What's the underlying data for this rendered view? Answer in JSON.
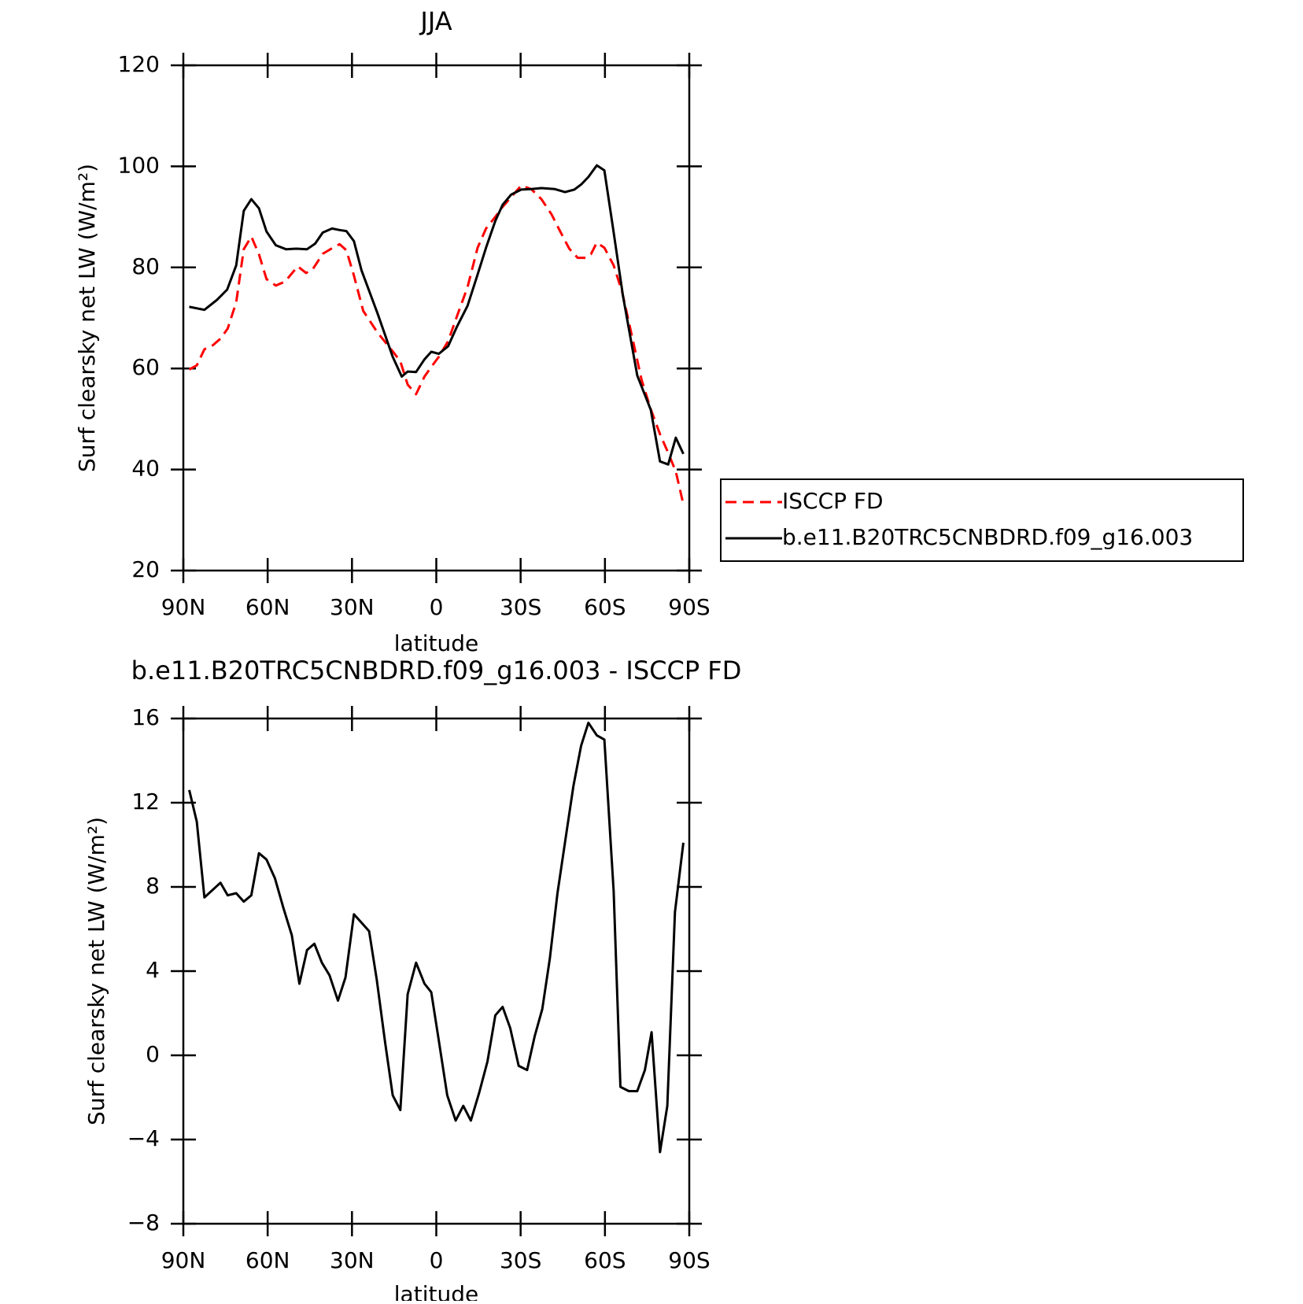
{
  "chart_data": [
    {
      "type": "line",
      "title": "JJA",
      "xlabel": "latitude",
      "ylabel": "Surf clearsky net LW (W/m²)",
      "xlim": [
        90,
        -90
      ],
      "xticks": [
        {
          "value": 90,
          "label": "90N"
        },
        {
          "value": 60,
          "label": "60N"
        },
        {
          "value": 30,
          "label": "30N"
        },
        0,
        {
          "value": -30,
          "label": "30S"
        },
        {
          "value": -60,
          "label": "60S"
        },
        {
          "value": -90,
          "label": "90S"
        }
      ],
      "ylim": [
        20,
        120
      ],
      "yticks": [
        20,
        40,
        60,
        80,
        100,
        120
      ],
      "legend": "outside right",
      "series": [
        {
          "name": "ISCCP FD",
          "color": "#ff0000",
          "style": "dashed",
          "x": [
            87.9,
            85.2,
            82.5,
            79.5,
            76.8,
            74.2,
            71.2,
            68.5,
            65.8,
            63.1,
            60.4,
            57.1,
            53.8,
            49.3,
            46.3,
            43.9,
            40.4,
            36.8,
            34.4,
            32.0,
            29.3,
            26.0,
            20.9,
            15.5,
            12.8,
            10.2,
            7.2,
            4.2,
            1.8,
            -0.9,
            -4.2,
            -7.2,
            -11.1,
            -14.7,
            -17.7,
            -21.0,
            -23.6,
            -26.6,
            -30.2,
            -33.8,
            -37.4,
            -41.0,
            -44.0,
            -47.3,
            -50.3,
            -53.2,
            -55.0,
            -57.1,
            -59.8,
            -63.1,
            -66.1,
            -70.0,
            -73.0,
            -76.3,
            -79.6,
            -82.5,
            -85.2,
            -87.9
          ],
          "values": [
            59.8,
            60.6,
            63.8,
            64.6,
            65.9,
            67.9,
            73.1,
            83.6,
            86.1,
            82.6,
            77.7,
            76.4,
            77.2,
            80.2,
            78.9,
            79.7,
            82.7,
            83.9,
            84.6,
            83.4,
            78.4,
            71.4,
            67.1,
            63.4,
            61.4,
            56.8,
            54.9,
            58.4,
            60.3,
            62.3,
            65.4,
            70.1,
            76.1,
            83.9,
            87.7,
            90.0,
            92.0,
            93.9,
            96.2,
            95.5,
            93.5,
            90.5,
            87.2,
            83.7,
            81.9,
            81.9,
            82.6,
            84.9,
            83.9,
            80.4,
            75.2,
            65.4,
            57.8,
            51.9,
            47.0,
            43.3,
            39.6,
            33.1
          ]
        },
        {
          "name": "b.e11.B20TRC5CNBDRD.f09_g16.003",
          "color": "#000000",
          "style": "solid",
          "x": [
            87.9,
            82.5,
            78.0,
            74.4,
            71.2,
            68.5,
            65.8,
            63.1,
            60.4,
            57.1,
            53.5,
            49.9,
            46.0,
            43.1,
            40.4,
            37.1,
            34.4,
            32.0,
            29.3,
            26.6,
            20.9,
            15.5,
            12.3,
            10.2,
            7.2,
            4.2,
            1.8,
            -0.9,
            -4.2,
            -7.2,
            -11.1,
            -14.7,
            -17.7,
            -21.0,
            -23.6,
            -26.6,
            -30.2,
            -33.8,
            -37.4,
            -42.2,
            -45.8,
            -49.1,
            -51.7,
            -54.1,
            -57.1,
            -59.8,
            -62.8,
            -66.4,
            -71.5,
            -76.3,
            -79.6,
            -82.5,
            -85.2,
            -87.9
          ],
          "values": [
            72.2,
            71.6,
            73.6,
            75.6,
            80.4,
            91.2,
            93.5,
            91.7,
            87.1,
            84.4,
            83.6,
            83.7,
            83.6,
            84.7,
            86.9,
            87.7,
            87.4,
            87.2,
            85.2,
            79.4,
            70.9,
            62.3,
            58.4,
            59.4,
            59.3,
            61.8,
            63.3,
            62.9,
            64.4,
            68.1,
            72.4,
            78.6,
            83.9,
            89.2,
            92.4,
            94.4,
            95.4,
            95.5,
            95.7,
            95.5,
            94.9,
            95.4,
            96.5,
            97.9,
            100.2,
            99.2,
            88.1,
            74.4,
            58.6,
            51.8,
            41.6,
            41.0,
            46.3,
            43.1
          ]
        }
      ]
    },
    {
      "type": "line",
      "title": "b.e11.B20TRC5CNBDRD.f09_g16.003 - ISCCP FD",
      "xlabel": "latitude",
      "ylabel": "Surf clearsky net LW (W/m²)",
      "xlim": [
        90,
        -90
      ],
      "xticks": [
        {
          "value": 90,
          "label": "90N"
        },
        {
          "value": 60,
          "label": "60N"
        },
        {
          "value": 30,
          "label": "30N"
        },
        0,
        {
          "value": -30,
          "label": "30S"
        },
        {
          "value": -60,
          "label": "60S"
        },
        {
          "value": -90,
          "label": "90S"
        }
      ],
      "ylim": [
        -8,
        16
      ],
      "yticks": [
        {
          "value": -8,
          "label": "−8"
        },
        {
          "value": -4,
          "label": "−4"
        },
        0,
        4,
        8,
        12,
        16
      ],
      "color": "#000000",
      "x": [
        87.9,
        85.2,
        82.5,
        76.8,
        74.2,
        71.2,
        68.5,
        65.8,
        63.1,
        60.4,
        57.4,
        54.4,
        51.4,
        48.7,
        46.0,
        43.4,
        40.7,
        38.0,
        35.0,
        32.3,
        29.3,
        26.6,
        23.9,
        21.2,
        18.2,
        15.5,
        12.8,
        10.2,
        7.2,
        4.2,
        1.8,
        -0.9,
        -3.9,
        -6.9,
        -9.6,
        -12.3,
        -15.2,
        -18.2,
        -21.0,
        -23.6,
        -26.3,
        -29.3,
        -32.3,
        -35.0,
        -37.7,
        -40.4,
        -43.1,
        -46.1,
        -48.8,
        -51.5,
        -54.1,
        -57.1,
        -59.8,
        -63.1,
        -65.5,
        -68.5,
        -71.5,
        -74.2,
        -76.6,
        -79.6,
        -82.2,
        -84.9,
        -87.9
      ],
      "values": [
        12.6,
        11.1,
        7.5,
        8.2,
        7.6,
        7.7,
        7.3,
        7.6,
        9.6,
        9.3,
        8.4,
        7.0,
        5.7,
        3.4,
        5.0,
        5.3,
        4.4,
        3.8,
        2.6,
        3.7,
        6.7,
        6.3,
        5.9,
        3.6,
        0.6,
        -1.9,
        -2.6,
        2.9,
        4.4,
        3.4,
        3.0,
        0.7,
        -1.9,
        -3.1,
        -2.4,
        -3.1,
        -1.8,
        -0.3,
        1.9,
        2.3,
        1.3,
        -0.5,
        -0.7,
        0.9,
        2.2,
        4.6,
        7.7,
        10.4,
        12.8,
        14.7,
        15.8,
        15.2,
        15.0,
        7.8,
        -1.5,
        -1.7,
        -1.7,
        -0.7,
        1.1,
        -4.6,
        -2.4,
        6.8,
        10.1
      ]
    }
  ]
}
